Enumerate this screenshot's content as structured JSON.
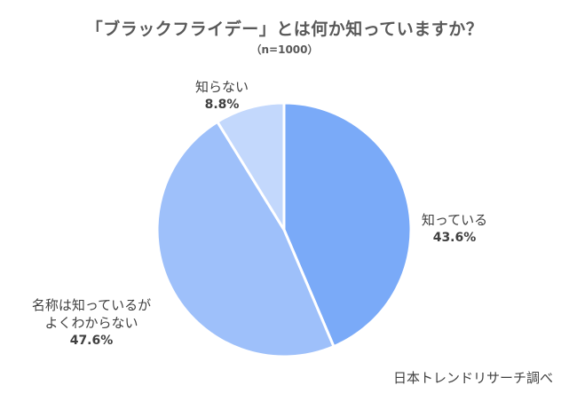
{
  "chart_data": {
    "type": "pie",
    "title": "「ブラックフライデー」とは何か知っていますか？",
    "subtitle": "（n=1000）",
    "slices": [
      {
        "label": "知っている",
        "label_lines": [
          "知っている"
        ],
        "value": 43.6,
        "value_text": "43.6%",
        "color": "#7aaaf8"
      },
      {
        "label": "名称は知っているがよくわからない",
        "label_lines": [
          "名称は知っているが",
          "よくわからない"
        ],
        "value": 47.6,
        "value_text": "47.6%",
        "color": "#9ec0fa"
      },
      {
        "label": "知らない",
        "label_lines": [
          "知らない"
        ],
        "value": 8.8,
        "value_text": "8.8%",
        "color": "#c3d8fc"
      }
    ],
    "source": "日本トレンドリサーチ調べ"
  }
}
